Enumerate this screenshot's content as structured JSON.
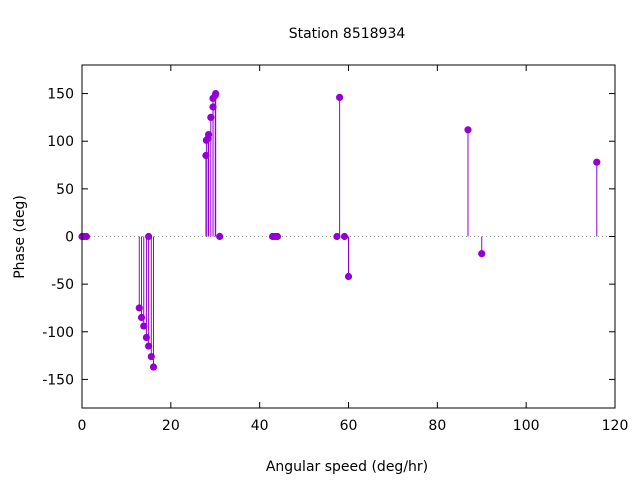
{
  "chart_data": {
    "type": "scatter",
    "style": "impulses-with-points",
    "title": "Station 8518934",
    "xlabel": "Angular speed (deg/hr)",
    "ylabel": "Phase (deg)",
    "xlim": [
      0,
      120
    ],
    "ylim": [
      -180,
      180
    ],
    "xticks": [
      0,
      20,
      40,
      60,
      80,
      100,
      120
    ],
    "yticks": [
      -150,
      -100,
      -50,
      0,
      50,
      100,
      150
    ],
    "grid": false,
    "zero_line": true,
    "color": "#9400d3",
    "points": [
      {
        "x": 0.0,
        "y": 0
      },
      {
        "x": 0.5,
        "y": 0
      },
      {
        "x": 1.0,
        "y": 0
      },
      {
        "x": 12.9,
        "y": -75
      },
      {
        "x": 13.4,
        "y": -85
      },
      {
        "x": 13.9,
        "y": -94
      },
      {
        "x": 14.5,
        "y": -106
      },
      {
        "x": 15.0,
        "y": -115
      },
      {
        "x": 15.0,
        "y": 0
      },
      {
        "x": 15.6,
        "y": -126
      },
      {
        "x": 16.1,
        "y": -137
      },
      {
        "x": 27.9,
        "y": 85
      },
      {
        "x": 28.0,
        "y": 101
      },
      {
        "x": 28.4,
        "y": 103
      },
      {
        "x": 28.5,
        "y": 107
      },
      {
        "x": 29.0,
        "y": 125
      },
      {
        "x": 29.5,
        "y": 136
      },
      {
        "x": 29.5,
        "y": 145
      },
      {
        "x": 30.0,
        "y": 148
      },
      {
        "x": 30.1,
        "y": 150
      },
      {
        "x": 31.0,
        "y": 0
      },
      {
        "x": 42.9,
        "y": 0
      },
      {
        "x": 43.5,
        "y": 0
      },
      {
        "x": 44.0,
        "y": 0
      },
      {
        "x": 57.4,
        "y": 0
      },
      {
        "x": 58.0,
        "y": 146
      },
      {
        "x": 59.1,
        "y": 0
      },
      {
        "x": 60.0,
        "y": -42
      },
      {
        "x": 86.9,
        "y": 112
      },
      {
        "x": 90.0,
        "y": -18
      },
      {
        "x": 115.9,
        "y": 78
      }
    ]
  }
}
